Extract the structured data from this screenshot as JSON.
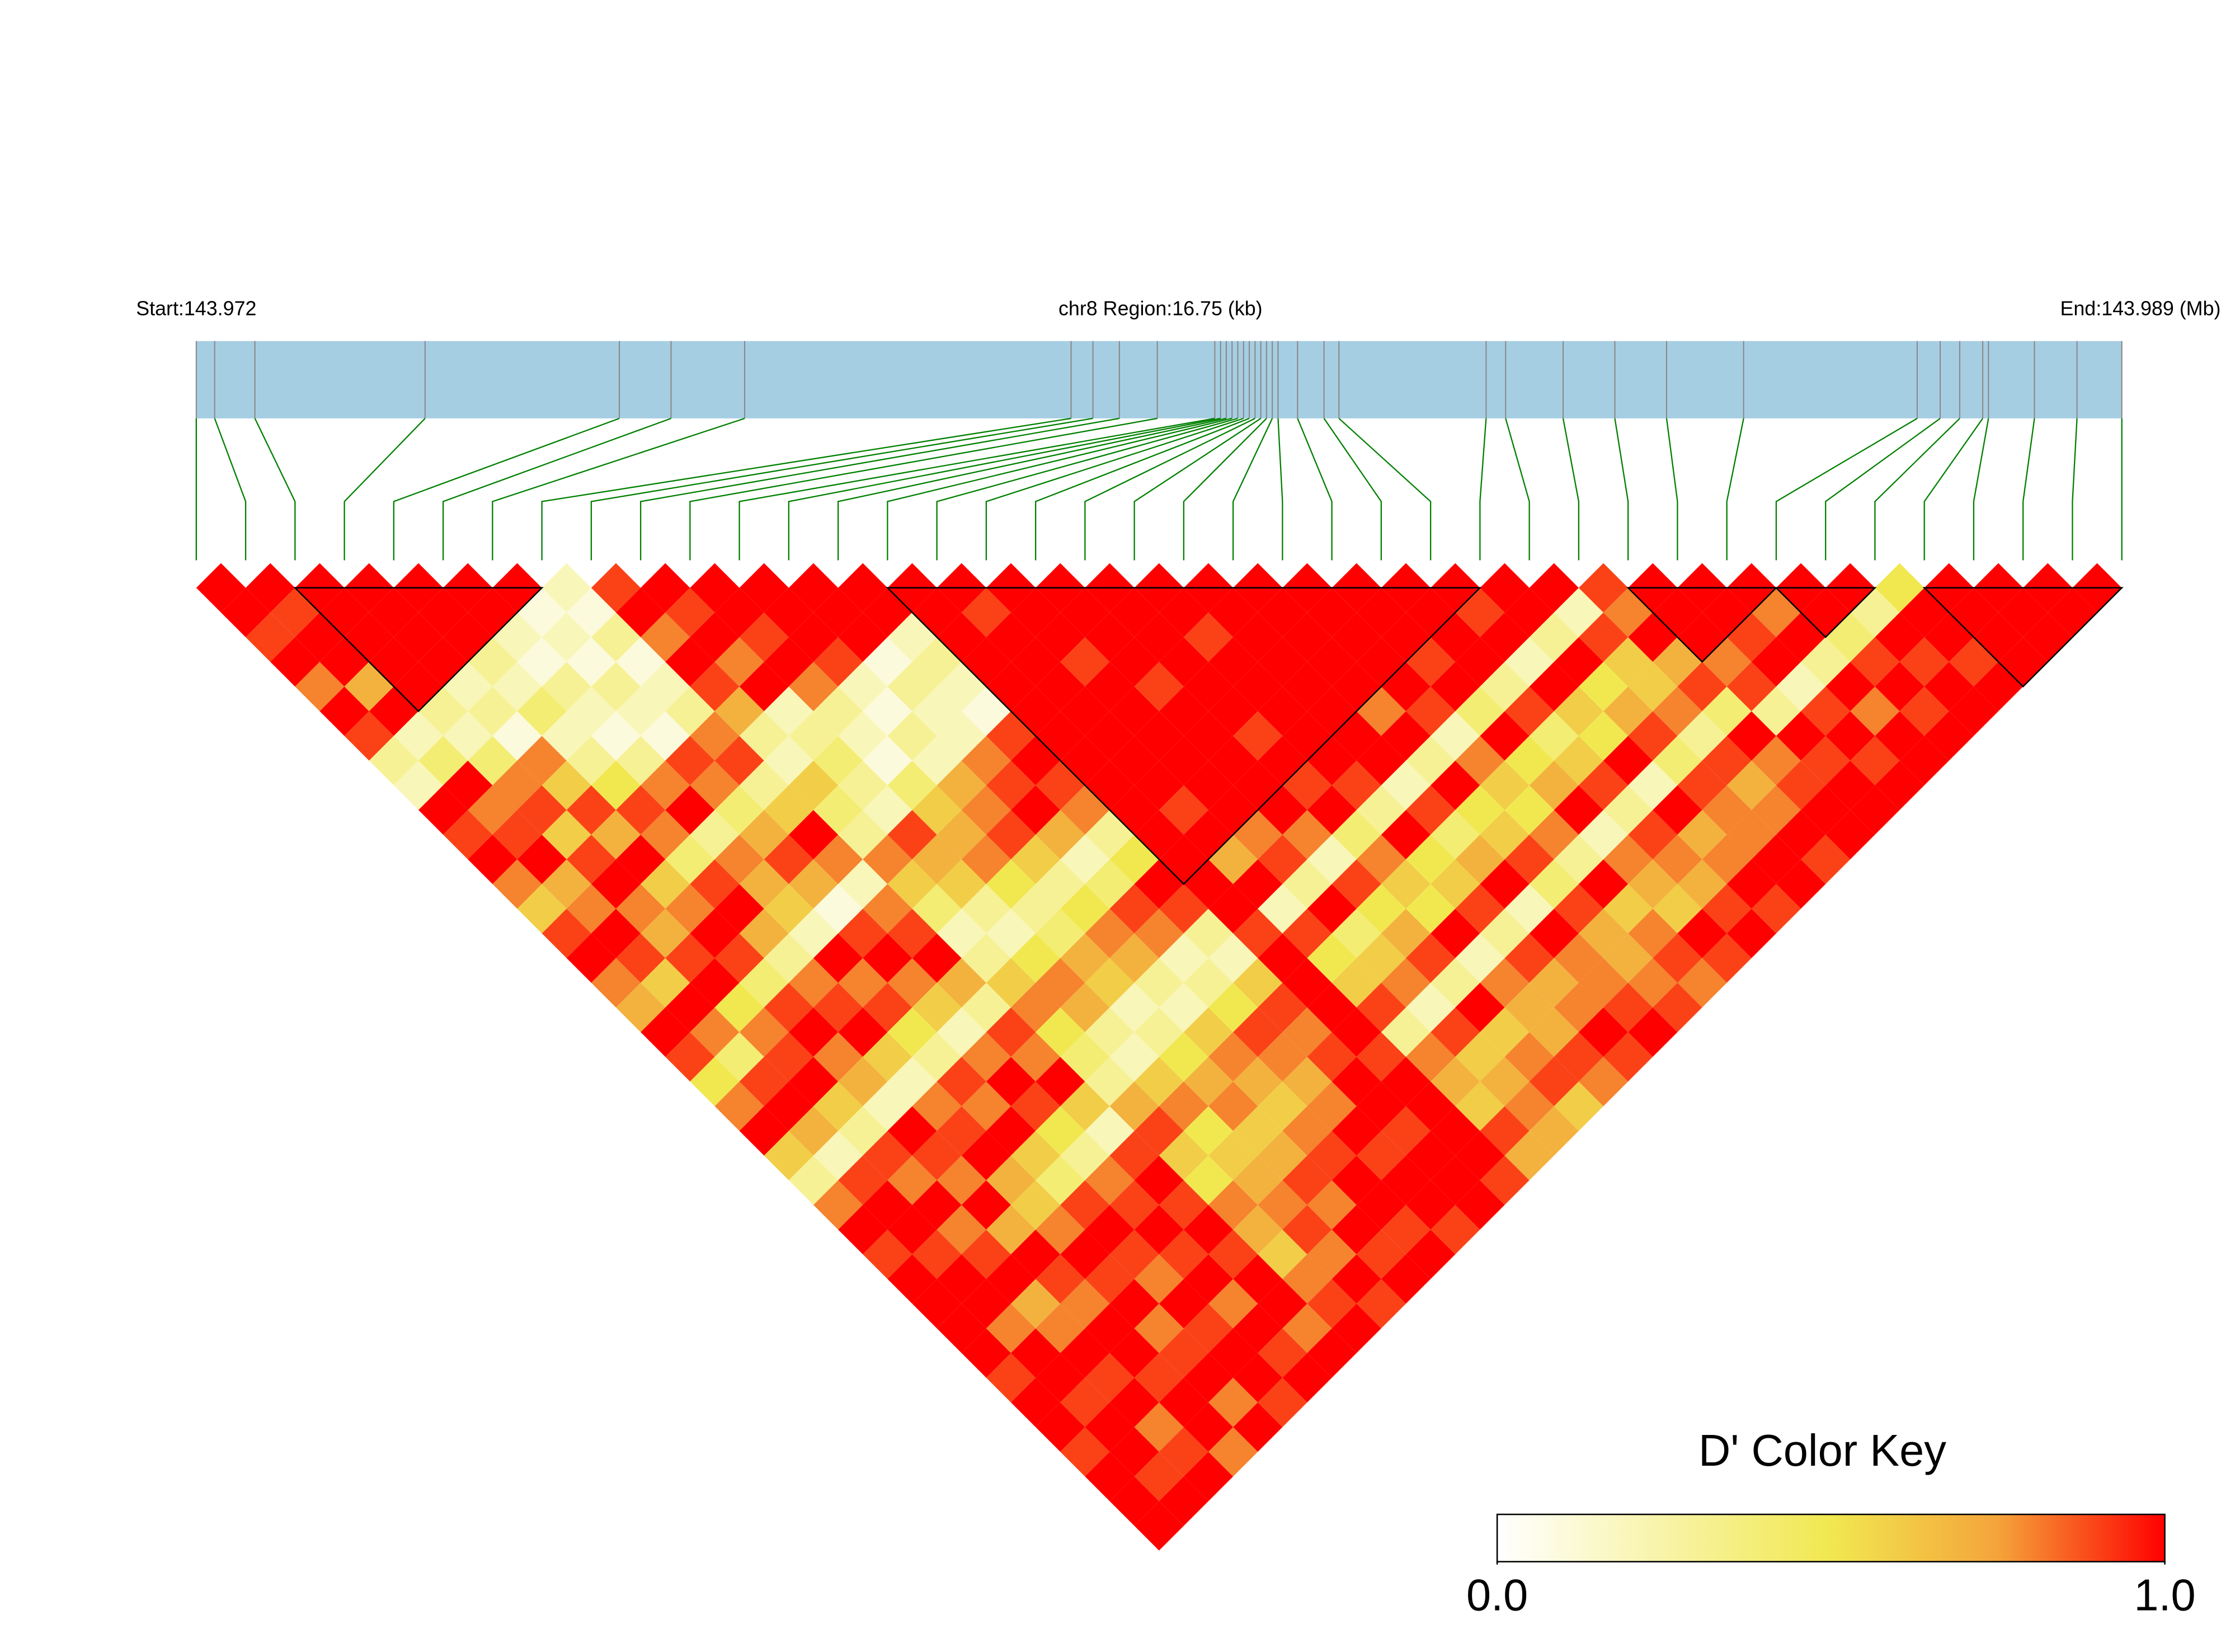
{
  "chart_data": {
    "type": "ld_heatmap",
    "start_label": "Start:143.972",
    "region_label": "chr8 Region:16.75 (kb)",
    "end_label": "End:143.989 (Mb)",
    "legend_title": "D' Color Key",
    "gene_color": "#a6cee3",
    "connector_color": "#008000",
    "xlim": [
      0,
      16.75
    ],
    "snp_positions_kb": [
      0,
      0.16,
      0.51,
      1.99,
      3.68,
      4.13,
      4.77,
      7.61,
      7.8,
      8.03,
      8.36,
      8.86,
      8.91,
      8.96,
      9.01,
      9.06,
      9.11,
      9.16,
      9.21,
      9.26,
      9.31,
      9.36,
      9.41,
      9.58,
      9.81,
      9.94,
      11.22,
      11.39,
      11.89,
      12.34,
      12.79,
      13.46,
      14.97,
      15.17,
      15.34,
      15.54,
      15.59,
      15.99,
      16.36,
      16.75
    ],
    "color_stops": [
      {
        "value": 0,
        "color": "#ffffff"
      },
      {
        "value": 0.5,
        "color": "#f1e850"
      },
      {
        "value": 0.75,
        "color": "#f4a43a"
      },
      {
        "value": 1,
        "color": "#ff0000"
      }
    ],
    "colorbar_ticks": [
      {
        "value": 0,
        "label": "0.0"
      },
      {
        "value": 1,
        "label": "1.0"
      }
    ],
    "blocks": [
      [
        2,
        7
      ],
      [
        14,
        26
      ],
      [
        29,
        32
      ],
      [
        32,
        34
      ],
      [
        35,
        39
      ]
    ],
    "ld_matrix": [
      [
        1,
        1,
        0.9,
        1,
        0.8,
        1,
        0.9,
        0.3,
        0.2,
        1,
        0.9,
        1,
        0.8,
        0.6,
        0.9,
        1,
        0.8,
        0.7,
        1,
        0.9,
        0.5,
        0.8,
        1,
        0.6,
        0.3,
        0.8,
        1,
        0.9,
        1,
        1,
        1,
        1,
        0.9,
        1,
        1,
        0.9,
        1,
        1,
        1
      ],
      [
        1,
        0.9,
        1,
        1,
        0.7,
        1,
        0.2,
        0.4,
        1,
        0.8,
        0.9,
        1,
        0.7,
        0.8,
        1,
        0.9,
        0.6,
        1,
        0.8,
        0.4,
        0.9,
        1,
        0.7,
        0.2,
        0.9,
        1,
        1,
        0.9,
        1,
        1,
        0.8,
        1,
        1,
        0.9,
        1,
        1,
        0.9,
        1
      ],
      [
        1,
        1,
        1,
        1,
        1,
        0.3,
        0.2,
        0.4,
        0.8,
        0.9,
        0.6,
        0.9,
        1,
        0.8,
        0.7,
        0.9,
        1,
        0.5,
        0.8,
        0.9,
        1,
        0.6,
        0.3,
        0.9,
        0.8,
        1,
        0.8,
        0.9,
        1,
        0.7,
        0.8,
        1,
        0.9,
        1,
        0.8,
        0.9,
        1
      ],
      [
        1,
        1,
        1,
        1,
        0.2,
        0.3,
        0.1,
        0.8,
        0.6,
        0.9,
        0.7,
        1,
        0.6,
        0.8,
        1,
        0.9,
        0.4,
        0.9,
        1,
        0.8,
        0.7,
        0.2,
        1,
        0.9,
        0.8,
        1,
        0.7,
        1,
        0.9,
        0.8,
        1,
        1,
        0.9,
        1,
        1,
        0.8
      ],
      [
        1,
        1,
        1,
        0.3,
        0.2,
        0.4,
        0.2,
        0.3,
        0.5,
        0.9,
        0.8,
        0.4,
        0.9,
        1,
        0.7,
        0.3,
        0.8,
        0.9,
        1,
        0.6,
        0.2,
        0.8,
        0.9,
        1,
        0.7,
        0.6,
        0.8,
        1,
        0.9,
        1,
        0.8,
        0.9,
        1,
        0.8,
        1
      ],
      [
        1,
        1,
        0.2,
        0.1,
        0.3,
        0.2,
        0.1,
        0.3,
        0.8,
        1,
        0.3,
        0.8,
        0.7,
        0.6,
        0.2,
        1,
        0.8,
        0.9,
        0.5,
        0.3,
        0.9,
        0.8,
        1,
        0.6,
        0.4,
        0.9,
        1,
        0.9,
        0.8,
        1,
        0.9,
        1,
        1,
        0.9
      ],
      [
        1,
        0.1,
        0.2,
        0.1,
        0.3,
        0.2,
        0.1,
        0.9,
        0.8,
        0.4,
        0.7,
        0.9,
        0.7,
        0.1,
        0.9,
        1,
        0.8,
        0.6,
        0.2,
        0.8,
        1,
        0.9,
        0.5,
        0.3,
        0.8,
        0.9,
        1,
        0.9,
        1,
        0.8,
        1,
        0.9,
        1
      ],
      [
        0.2,
        0.1,
        0.3,
        0.1,
        0.2,
        0.3,
        0.8,
        0.9,
        0.3,
        0.6,
        1,
        0.8,
        0.2,
        0.8,
        0.9,
        1,
        0.7,
        0.3,
        0.9,
        0.8,
        1,
        0.6,
        0.2,
        0.9,
        1,
        0.9,
        1,
        0.9,
        1,
        1,
        0.8,
        1
      ],
      [
        0.9,
        1,
        0.8,
        1,
        0.9,
        0.7,
        0.3,
        0.2,
        0.6,
        0.4,
        0.3,
        0.8,
        0.6,
        0.4,
        0.2,
        0.3,
        0.6,
        0.8,
        0.5,
        0.4,
        0.3,
        0.7,
        0.9,
        0.6,
        0.5,
        0.8,
        0.7,
        0.6,
        0.8,
        0.9,
        1
      ],
      [
        1,
        0.9,
        1,
        0.8,
        1,
        0.2,
        0.3,
        0.4,
        0.3,
        0.2,
        0.9,
        0.7,
        0.6,
        0.3,
        0.2,
        0.5,
        0.8,
        0.7,
        0.3,
        0.2,
        0.6,
        0.8,
        0.5,
        0.6,
        0.7,
        0.8,
        0.9,
        0.8,
        1,
        0.9
      ],
      [
        1,
        1,
        0.9,
        1,
        0.8,
        0.3,
        0.2,
        0.1,
        0.4,
        0.6,
        0.7,
        0.8,
        0.5,
        0.3,
        0.4,
        0.7,
        0.6,
        0.2,
        0.3,
        0.5,
        0.7,
        0.8,
        0.6,
        0.7,
        0.9,
        0.8,
        1,
        0.9,
        1
      ],
      [
        1,
        1,
        1,
        0.9,
        0.2,
        0.1,
        0.3,
        0.2,
        0.7,
        0.8,
        0.9,
        0.6,
        0.3,
        0.5,
        0.8,
        0.7,
        0.3,
        0.2,
        0.6,
        0.8,
        0.7,
        0.6,
        0.8,
        0.9,
        1,
        1,
        0.9,
        1
      ],
      [
        1,
        1,
        1,
        0.1,
        0.3,
        0.2,
        0.2,
        0.8,
        0.9,
        1,
        0.7,
        0.2,
        0.4,
        0.9,
        0.8,
        0.2,
        0.3,
        0.5,
        0.9,
        0.8,
        0.7,
        0.8,
        1,
        0.9,
        1,
        1,
        0.9
      ],
      [
        1,
        1,
        0.2,
        0.3,
        0.2,
        0.1,
        0.9,
        1,
        0.9,
        0.8,
        0.3,
        0.5,
        1,
        0.9,
        0.3,
        0.2,
        0.6,
        0.9,
        0.8,
        0.9,
        1,
        1,
        0.9,
        1,
        1,
        1
      ],
      [
        1,
        1,
        1,
        1,
        1,
        1,
        1,
        1,
        1,
        1,
        1,
        1,
        1,
        1,
        0.9,
        1,
        1,
        1,
        1,
        0.9,
        1,
        1,
        1,
        1,
        0.9
      ],
      [
        1,
        0.9,
        1,
        1,
        1,
        1,
        1,
        1,
        1,
        0.9,
        1,
        0.7,
        1,
        0.2,
        0.9,
        0.5,
        0.6,
        0.9,
        0.3,
        0.8,
        0.7,
        0.6,
        0.9,
        0.7
      ],
      [
        1,
        1,
        1,
        0.9,
        1,
        1,
        1,
        1,
        1,
        1,
        0.8,
        0.9,
        0.3,
        1,
        0.4,
        0.6,
        0.8,
        0.2,
        0.9,
        0.6,
        0.7,
        0.8,
        0.7
      ],
      [
        1,
        1,
        1,
        1,
        0.9,
        1,
        1,
        1,
        1,
        1,
        0.8,
        0.2,
        0.9,
        0.5,
        0.7,
        0.9,
        0.3,
        1,
        0.6,
        0.8,
        0.9,
        0.6
      ],
      [
        1,
        1,
        1,
        1,
        1,
        1,
        0.9,
        1,
        0.9,
        1,
        0.4,
        0.8,
        0.6,
        0.5,
        1,
        0.2,
        0.8,
        0.7,
        0.7,
        0.9,
        0.8
      ],
      [
        1,
        1,
        0.9,
        1,
        1,
        1,
        1,
        1,
        0.9,
        0.3,
        1,
        0.5,
        0.6,
        0.9,
        0.3,
        0.9,
        0.7,
        0.8,
        1,
        0.9
      ],
      [
        1,
        1,
        1,
        1,
        1,
        1,
        1,
        1,
        0.2,
        0.9,
        0.4,
        0.7,
        1,
        0.2,
        1,
        0.8,
        0.8,
        0.9,
        1
      ],
      [
        1,
        1,
        1,
        1,
        1,
        0.8,
        1,
        0.3,
        1,
        0.5,
        0.6,
        0.9,
        0.4,
        0.9,
        0.7,
        0.7,
        0.8,
        0.9
      ],
      [
        1,
        1,
        1,
        1,
        1,
        0.9,
        0.2,
        0.8,
        0.6,
        0.5,
        0.8,
        0.3,
        1,
        0.6,
        0.8,
        0.9,
        0.8
      ],
      [
        1,
        1,
        1,
        0.9,
        1,
        0.4,
        1,
        0.5,
        0.7,
        1,
        0.2,
        0.8,
        0.7,
        0.6,
        1,
        0.9
      ],
      [
        1,
        1,
        1,
        1,
        0.3,
        0.9,
        0.4,
        0.6,
        0.9,
        0.3,
        0.9,
        0.8,
        0.7,
        0.9,
        1
      ],
      [
        1,
        0.9,
        1,
        0.2,
        1,
        0.6,
        0.5,
        1,
        0.2,
        1,
        0.7,
        0.8,
        1,
        0.9
      ],
      [
        1,
        1,
        0.3,
        1,
        0.5,
        0.7,
        0.9,
        0.4,
        0.9,
        0.8,
        0.8,
        1,
        1
      ],
      [
        1,
        0.2,
        0.9,
        0.6,
        0.6,
        0.8,
        0.3,
        0.9,
        0.7,
        0.8,
        1,
        0.9
      ],
      [
        0.9,
        0.8,
        1,
        0.7,
        0.9,
        0.4,
        1,
        0.8,
        0.9,
        1,
        1
      ],
      [
        1,
        1,
        1,
        0.8,
        0.9,
        0.3,
        1,
        0.9,
        1,
        1
      ],
      [
        1,
        1,
        0.9,
        1,
        0.2,
        0.9,
        1,
        0.9,
        1
      ],
      [
        1,
        0.8,
        1,
        0.3,
        1,
        0.8,
        1,
        1
      ],
      [
        1,
        1,
        0.4,
        0.9,
        1,
        0.9,
        1
      ],
      [
        1,
        0.3,
        1,
        0.9,
        1,
        1
      ],
      [
        0.5,
        1,
        1,
        0.9,
        1
      ],
      [
        1,
        1,
        1,
        1
      ],
      [
        1,
        1,
        1
      ],
      [
        1,
        1
      ],
      [
        1
      ]
    ]
  }
}
